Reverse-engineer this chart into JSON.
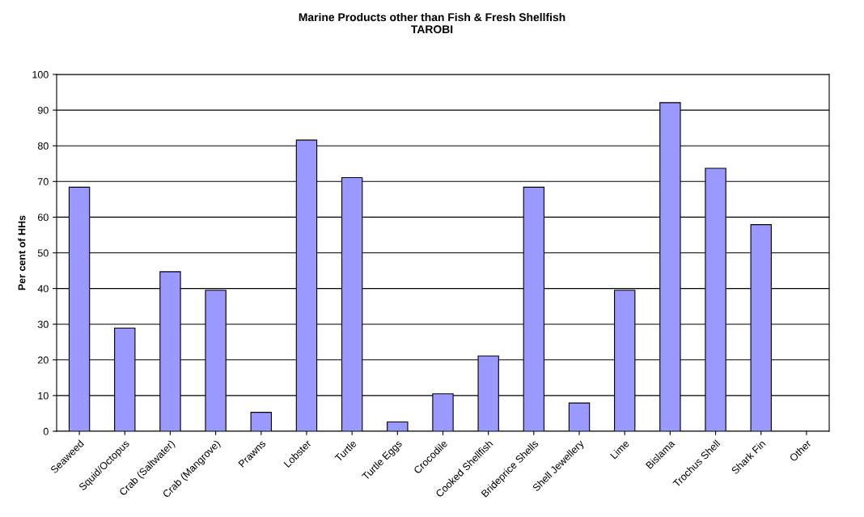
{
  "chart_data": {
    "type": "bar",
    "title": "Marine Products other than Fish & Fresh Shellfish\nTAROBI",
    "ylabel": "Per cent of HHs",
    "categories": [
      "Seaweed",
      "Squid/Octopus",
      "Crab (Saltwater)",
      "Crab (Mangrove)",
      "Prawns",
      "Lobster",
      "Turtle",
      "Turtle Eggs",
      "Crocodile",
      "Cooked Shellfish",
      "Brideprice Shells",
      "Shell Jewellery",
      "Lime",
      "Bislama",
      "Trochus Shell",
      "Shark Fin",
      "Other"
    ],
    "values": [
      68.4,
      28.9,
      44.7,
      39.5,
      5.3,
      81.6,
      71.1,
      2.6,
      10.5,
      21.1,
      68.4,
      7.9,
      39.5,
      92.1,
      73.7,
      57.9,
      0
    ],
    "color": "#9999ff",
    "ylim": [
      0,
      100
    ],
    "yticks": [
      0,
      10,
      20,
      30,
      40,
      50,
      60,
      70,
      80,
      90,
      100
    ],
    "grid": "y",
    "legend": false
  }
}
